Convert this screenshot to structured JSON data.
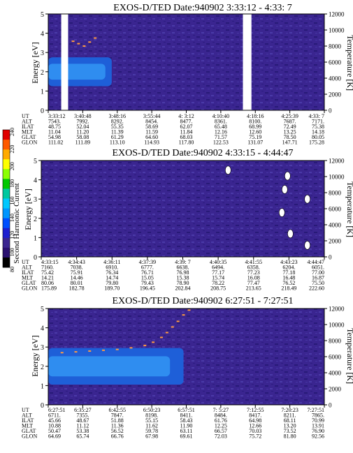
{
  "colors": {
    "background": "#3a2590",
    "speckle_dark": "#281a78",
    "speckle_mid": "#4a3aa8",
    "band_outer": "#1e5fd8",
    "band_inner": "#2f8df0",
    "data_gap": "#ffffff"
  },
  "colorbar": {
    "label": "Second Harmonic Current",
    "ticks": [
      "240",
      "220",
      "200",
      "180",
      "160",
      "140",
      "120",
      "100",
      "80"
    ],
    "colors": [
      "#e00000",
      "#ff5a00",
      "#ffaa00",
      "#ffff00",
      "#8cff00",
      "#00c800",
      "#00c8a0",
      "#00c8ff",
      "#0096ff",
      "#0050ff",
      "#1e20d0",
      "#3a2590",
      "#2a1070",
      "#000000"
    ]
  },
  "panels": [
    {
      "title": "EXOS-D/TED   Date:940902   3:33:12 - 4:33: 7",
      "ylabel": "Energy [eV]",
      "y2label": "Temperature [K]",
      "yticks": [
        "5",
        "4",
        "3",
        "2",
        "1",
        "0"
      ],
      "y2ticks": [
        "12000",
        "10000",
        "8000",
        "6000",
        "4000",
        "2000",
        "0"
      ],
      "table": {
        "labels": [
          "UT",
          "ALT",
          "ILAT",
          "MLT",
          "GLAT",
          "GLON"
        ],
        "columns": [
          [
            "3:33:12",
            "7543.",
            "48.75",
            "11.04",
            "54.98",
            "111.02"
          ],
          [
            "3:40:48",
            "7992.",
            "52.04",
            "11.20",
            "58.08",
            "111.89"
          ],
          [
            "3:48:16",
            "8292.",
            "55.35",
            "11.39",
            "61.29",
            "113.10"
          ],
          [
            "3:55:44",
            "8454.",
            "58.69",
            "11.59",
            "64.60",
            "114.93"
          ],
          [
            "4: 3:12",
            "8477.",
            "62.07",
            "11.84",
            "68.03",
            "117.80"
          ],
          [
            "4:10:40",
            "8361.",
            "65.48",
            "12.16",
            "71.57",
            "122.53"
          ],
          [
            "4:18:16",
            "8100.",
            "68.99",
            "12.60",
            "75.19",
            "131.07"
          ],
          [
            "4:25:39",
            "7687.",
            "72.49",
            "13.25",
            "78.50",
            "147.71"
          ],
          [
            "4:33: 7",
            "7171.",
            "75.38",
            "14.18",
            "80.05",
            "175.28"
          ]
        ]
      },
      "chart_data": {
        "type": "heatmap",
        "title": "EXOS-D/TED   Date:940902   3:33:12 - 4:33: 7",
        "ylabel": "Energy [eV]",
        "y2label": "Temperature [K]",
        "ylim": [
          0,
          5
        ],
        "y2lim": [
          0,
          12000
        ],
        "x_ticks": [
          "3:33:12",
          "3:40:48",
          "3:48:16",
          "3:55:44",
          "4: 3:12",
          "4:10:40",
          "4:18:16",
          "4:25:39",
          "4:33: 7"
        ],
        "ion_band": {
          "start_fraction": 0.0,
          "end_fraction": 0.23,
          "center_eV": 2.0,
          "half_width_eV": 0.75
        },
        "data_gaps_fraction": [
          [
            0.047,
            0.072
          ],
          [
            0.705,
            0.736
          ]
        ],
        "temperature_points": [
          {
            "x_fraction": 0.09,
            "T": 8600
          },
          {
            "x_fraction": 0.11,
            "T": 8300
          },
          {
            "x_fraction": 0.13,
            "T": 8000
          },
          {
            "x_fraction": 0.15,
            "T": 8500
          },
          {
            "x_fraction": 0.17,
            "T": 9000
          }
        ]
      }
    },
    {
      "title": "EXOS-D/TED   Date:940902   4:33:15 - 4:44:47",
      "ylabel": "Energy [eV]",
      "y2label": "Temperature [K]",
      "yticks": [
        "5",
        "4",
        "3",
        "2",
        "1",
        "0"
      ],
      "y2ticks": [
        "12000",
        "10000",
        "8000",
        "6000",
        "4000",
        "2000",
        "0"
      ],
      "table": {
        "labels": [
          "UT",
          "ALT",
          "ILAT",
          "MLT",
          "GLAT",
          "GLON"
        ],
        "columns": [
          [
            "4:33:15",
            "7160.",
            "75.42",
            "14.21",
            "80.06",
            "175.89"
          ],
          [
            "4:34:43",
            "7038.",
            "75.91",
            "14.46",
            "80.01",
            "182.78"
          ],
          [
            "4:36:11",
            "6910.",
            "76.34",
            "14.74",
            "79.80",
            "189.70"
          ],
          [
            "4:37:39",
            "6777.",
            "76.71",
            "15.05",
            "79.43",
            "196.45"
          ],
          [
            "4:39: 7",
            "6638.",
            "76.98",
            "15.38",
            "78.90",
            "202.84"
          ],
          [
            "4:40:35",
            "6494.",
            "77.17",
            "15.74",
            "78.22",
            "208.75"
          ],
          [
            "4:41:55",
            "6358.",
            "77.23",
            "16.08",
            "77.47",
            "213.65"
          ],
          [
            "4:43:23",
            "6204.",
            "77.18",
            "16.48",
            "76.52",
            "218.49"
          ],
          [
            "4:44:47",
            "6051.",
            "77.00",
            "16.87",
            "75.50",
            "222.60"
          ]
        ]
      },
      "chart_data": {
        "type": "heatmap",
        "title": "EXOS-D/TED   Date:940902   4:33:15 - 4:44:47",
        "ylabel": "Energy [eV]",
        "y2label": "Temperature [K]",
        "ylim": [
          0,
          5
        ],
        "y2lim": [
          0,
          12000
        ],
        "x_ticks": [
          "4:33:15",
          "4:34:43",
          "4:36:11",
          "4:37:39",
          "4:39: 7",
          "4:40:35",
          "4:41:55",
          "4:43:23",
          "4:44:47"
        ],
        "ion_band": null,
        "white_patches": [
          {
            "x_fraction": 0.66,
            "E": 4.5
          },
          {
            "x_fraction": 0.87,
            "E": 4.2
          },
          {
            "x_fraction": 0.86,
            "E": 3.5
          },
          {
            "x_fraction": 0.85,
            "E": 2.3
          },
          {
            "x_fraction": 0.88,
            "E": 1.2
          },
          {
            "x_fraction": 0.94,
            "E": 3.0
          },
          {
            "x_fraction": 0.94,
            "E": 0.6
          }
        ]
      }
    },
    {
      "title": "EXOS-D/TED   Date:940902   6:27:51 - 7:27:51",
      "ylabel": "Energy [eV]",
      "y2label": "Temperature [K]",
      "yticks": [
        "5",
        "4",
        "3",
        "2",
        "1",
        "0"
      ],
      "y2ticks": [
        "12000",
        "10000",
        "8000",
        "6000",
        "4000",
        "2000",
        "0"
      ],
      "table": {
        "labels": [
          "UT",
          "ALT",
          "ILAT",
          "MLT",
          "GLAT",
          "GLON"
        ],
        "columns": [
          [
            "6:27:51",
            "6711.",
            "45.66",
            "10.88",
            "50.47",
            "64.69"
          ],
          [
            "6:35:27",
            "7355.",
            "48.67",
            "11.12",
            "53.38",
            "65.74"
          ],
          [
            "6:42:55",
            "7847.",
            "51.88",
            "11.36",
            "56.52",
            "66.76"
          ],
          [
            "6:50:23",
            "8198.",
            "55.15",
            "11.62",
            "59.78",
            "67.98"
          ],
          [
            "6:57:51",
            "8411.",
            "58.43",
            "11.90",
            "63.11",
            "69.61"
          ],
          [
            "7: 5:27",
            "8484.",
            "61.76",
            "12.25",
            "66.57",
            "72.03"
          ],
          [
            "7:12:55",
            "8417.",
            "64.98",
            "12.66",
            "70.03",
            "75.72"
          ],
          [
            "7:20:23",
            "8211.",
            "68.11",
            "13.20",
            "73.52",
            "81.80"
          ],
          [
            "7:27:51",
            "7865.",
            "70.99",
            "13.91",
            "76.90",
            "92.56"
          ]
        ]
      },
      "chart_data": {
        "type": "heatmap",
        "title": "EXOS-D/TED   Date:940902   6:27:51 - 7:27:51",
        "ylabel": "Energy [eV]",
        "y2label": "Temperature [K]",
        "ylim": [
          0,
          5
        ],
        "y2lim": [
          0,
          12000
        ],
        "x_ticks": [
          "6:27:51",
          "6:35:27",
          "6:42:55",
          "6:50:23",
          "6:57:51",
          "7: 5:27",
          "7:12:55",
          "7:20:23",
          "7:27:51"
        ],
        "ion_band": {
          "start_fraction": 0.0,
          "end_fraction": 0.49,
          "center_eV": 2.0,
          "half_width_eV": 0.95
        },
        "temperature_points": [
          {
            "x_fraction": 0.05,
            "T": 6500
          },
          {
            "x_fraction": 0.1,
            "T": 6600
          },
          {
            "x_fraction": 0.15,
            "T": 6700
          },
          {
            "x_fraction": 0.2,
            "T": 6800
          },
          {
            "x_fraction": 0.25,
            "T": 6900
          },
          {
            "x_fraction": 0.3,
            "T": 7100
          },
          {
            "x_fraction": 0.35,
            "T": 7400
          },
          {
            "x_fraction": 0.38,
            "T": 7800
          },
          {
            "x_fraction": 0.41,
            "T": 8400
          },
          {
            "x_fraction": 0.43,
            "T": 9000
          },
          {
            "x_fraction": 0.45,
            "T": 9700
          },
          {
            "x_fraction": 0.47,
            "T": 10400
          },
          {
            "x_fraction": 0.49,
            "T": 11200
          },
          {
            "x_fraction": 0.51,
            "T": 11800
          }
        ]
      }
    }
  ]
}
